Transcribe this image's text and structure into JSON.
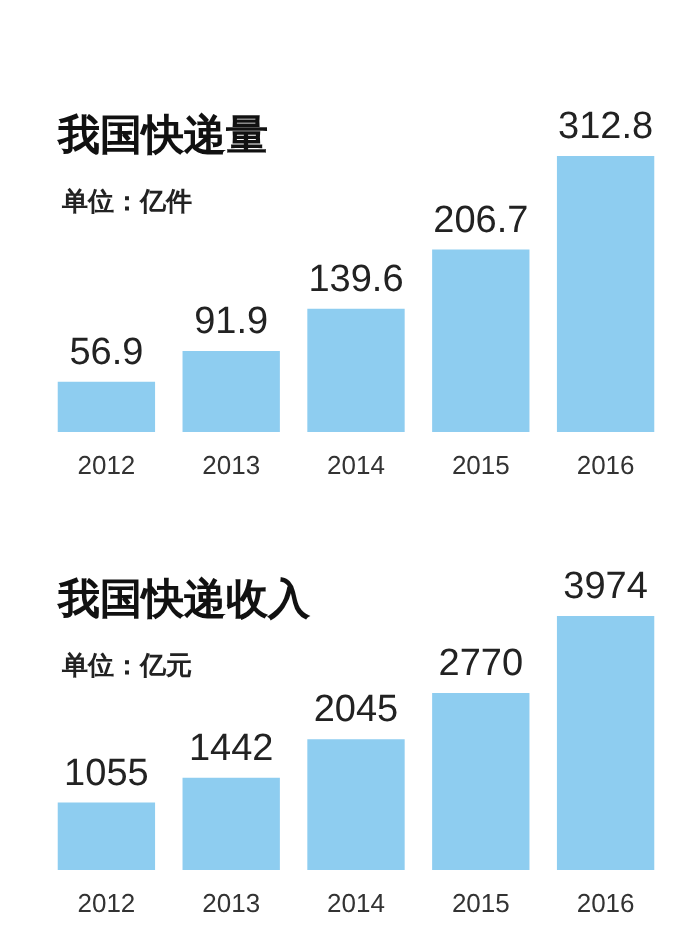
{
  "chart_data": [
    {
      "type": "bar",
      "title": "我国快递量",
      "subtitle": "单位：亿件",
      "categories": [
        "2012",
        "2013",
        "2014",
        "2015",
        "2016"
      ],
      "values": [
        56.9,
        91.9,
        139.6,
        206.7,
        312.8
      ],
      "color": "#8ecdf0",
      "data_labels": true
    },
    {
      "type": "bar",
      "title": "我国快递收入",
      "subtitle": "单位：亿元",
      "categories": [
        "2012",
        "2013",
        "2014",
        "2015",
        "2016"
      ],
      "values": [
        1055,
        1442,
        2045,
        2770,
        3974
      ],
      "color": "#8ecdf0",
      "data_labels": true
    }
  ]
}
